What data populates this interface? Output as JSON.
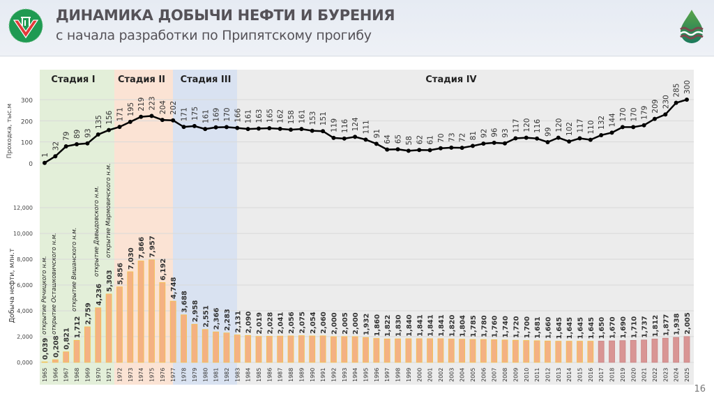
{
  "header": {
    "title": "ДИНАМИКА ДОБЫЧИ НЕФТИ И БУРЕНИЯ",
    "subtitle": "с начала разработки по Припятскому прогибу"
  },
  "page_number": "16",
  "colors": {
    "stage_1_bg": "#e3efd9",
    "stage_2_bg": "#fbe3d4",
    "stage_3_bg": "#d9e2f1",
    "stage_4_bg": "#ececec",
    "bar": "#f4b183",
    "bar_edge": "#f3c24f",
    "bar_forecast": "#d99594",
    "line": "#000000"
  },
  "chart_data": [
    {
      "type": "line",
      "ylabel": "Проходка, тыс.м",
      "ylim": [
        0,
        300
      ],
      "yticks": [
        "0",
        "100",
        "200",
        "300"
      ],
      "grid": true,
      "x": [
        1965,
        1966,
        1967,
        1968,
        1969,
        1970,
        1971,
        1972,
        1973,
        1974,
        1975,
        1976,
        1977,
        1978,
        1979,
        1980,
        1981,
        1982,
        1983,
        1984,
        1985,
        1986,
        1987,
        1988,
        1989,
        1990,
        1991,
        1992,
        1993,
        1994,
        1995,
        1996,
        1997,
        1998,
        1999,
        2000,
        2001,
        2002,
        2003,
        2004,
        2005,
        2006,
        2007,
        2008,
        2009,
        2010,
        2011,
        2012,
        2013,
        2014,
        2015,
        2016,
        2017,
        2018,
        2019,
        2020,
        2021,
        2022,
        2023,
        2024,
        2025
      ],
      "values": [
        1,
        32,
        79,
        89,
        93,
        135,
        156,
        171,
        195,
        219,
        223,
        204,
        202,
        171,
        175,
        161,
        169,
        170,
        166,
        161,
        163,
        165,
        162,
        158,
        161,
        153,
        151,
        119,
        116,
        124,
        111,
        91,
        64,
        65,
        58,
        62,
        61,
        70,
        73,
        72,
        81,
        92,
        96,
        93,
        117,
        120,
        116,
        99,
        120,
        102,
        117,
        110,
        132,
        144,
        170,
        170,
        179,
        209,
        230,
        285,
        300
      ]
    },
    {
      "type": "bar",
      "ylabel": "Добыча нефти, млн.т",
      "ylim": [
        0,
        12000
      ],
      "yticks": [
        "0,000",
        "2,000",
        "4,000",
        "6,000",
        "8,000",
        "10,000",
        "12,000"
      ],
      "grid": true,
      "categories": [
        "1965",
        "1966",
        "1967",
        "1968",
        "1969",
        "1970",
        "1971",
        "1972",
        "1973",
        "1974",
        "1975",
        "1976",
        "1977",
        "1978",
        "1979",
        "1980",
        "1981",
        "1982",
        "1983",
        "1984",
        "1985",
        "1986",
        "1987",
        "1988",
        "1989",
        "1990",
        "1991",
        "1992",
        "1993",
        "1994",
        "1995",
        "1996",
        "1997",
        "1998",
        "1999",
        "2000",
        "2001",
        "2002",
        "2003",
        "2004",
        "2005",
        "2006",
        "2007",
        "2008",
        "2009",
        "2010",
        "2011",
        "2012",
        "2013",
        "2014",
        "2015",
        "2016",
        "2017",
        "2018",
        "2019",
        "2020",
        "2021",
        "2022",
        "2023",
        "2024",
        "2025"
      ],
      "values": [
        39,
        208,
        821,
        1712,
        2759,
        4236,
        5303,
        5856,
        7030,
        7866,
        7957,
        6192,
        4748,
        3688,
        2958,
        2551,
        2366,
        2283,
        2131,
        2090,
        2019,
        2028,
        2041,
        2056,
        2075,
        2054,
        2060,
        2000,
        2005,
        2000,
        1932,
        1860,
        1822,
        1830,
        1840,
        1841,
        1841,
        1841,
        1820,
        1804,
        1785,
        1780,
        1760,
        1740,
        1720,
        1700,
        1681,
        1660,
        1645,
        1645,
        1645,
        1645,
        1650,
        1670,
        1690,
        1710,
        1737,
        1812,
        1877,
        1938,
        2005
      ],
      "labels": [
        "0,039",
        "0,208",
        "0,821",
        "1,712",
        "2,759",
        "4,236",
        "5,303",
        "5,856",
        "7,030",
        "7,866",
        "7,957",
        "6,192",
        "4,748",
        "3,688",
        "2,958",
        "2,551",
        "2,366",
        "2,283",
        "2,131",
        "2,090",
        "2,019",
        "2,028",
        "2,041",
        "2,056",
        "2,075",
        "2,054",
        "2,060",
        "2,000",
        "2,005",
        "2,000",
        "1,932",
        "1,860",
        "1,822",
        "1,830",
        "1,840",
        "1,841",
        "1,841",
        "1,841",
        "1,820",
        "1,804",
        "1,785",
        "1,780",
        "1,760",
        "1,740",
        "1,720",
        "1,700",
        "1,681",
        "1,660",
        "1,645",
        "1,645",
        "1,645",
        "1,645",
        "1,650",
        "1,670",
        "1,690",
        "1,710",
        "1,737",
        "1,812",
        "1,877",
        "1,938",
        "2,005"
      ],
      "forecast_from": "2017"
    }
  ],
  "stages": [
    "Стадия I",
    "Стадия II",
    "Стадия III",
    "Стадия IV"
  ],
  "annotations": [
    {
      "year": "1965",
      "text": "открытие Речицкого н.м."
    },
    {
      "year": "1966",
      "text": "открытие Осташковичского н.м."
    },
    {
      "year": "1968",
      "text": "открытие Вишанского н.м."
    },
    {
      "year": "1970",
      "text": "открытие Давыдовского н.м."
    },
    {
      "year": "1971",
      "text": "открытие Мармовичского н.м."
    }
  ]
}
